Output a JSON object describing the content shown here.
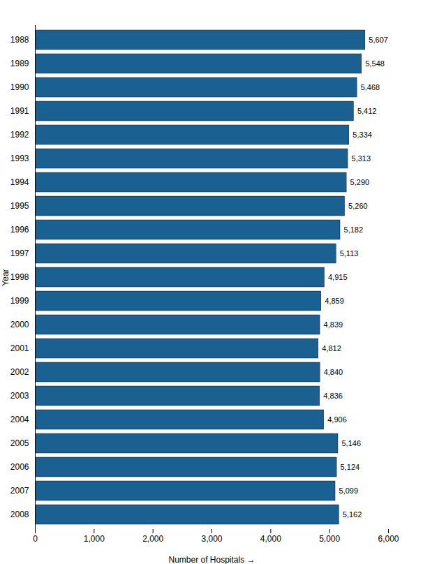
{
  "chart_data": {
    "type": "bar",
    "orientation": "horizontal",
    "categories": [
      "1988",
      "1989",
      "1990",
      "1991",
      "1992",
      "1993",
      "1994",
      "1995",
      "1996",
      "1997",
      "1998",
      "1999",
      "2000",
      "2001",
      "2002",
      "2003",
      "2004",
      "2005",
      "2006",
      "2007",
      "2008"
    ],
    "values": [
      5607,
      5548,
      5468,
      5412,
      5334,
      5313,
      5290,
      5260,
      5182,
      5113,
      4915,
      4859,
      4839,
      4812,
      4840,
      4836,
      4906,
      5146,
      5124,
      5099,
      5162
    ],
    "value_labels": [
      "5,607",
      "5,548",
      "5,468",
      "5,412",
      "5,334",
      "5,313",
      "5,290",
      "5,260",
      "5,182",
      "5,113",
      "4,915",
      "4,859",
      "4,839",
      "4,812",
      "4,840",
      "4,836",
      "4,906",
      "5,146",
      "5,124",
      "5,099",
      "5,162"
    ],
    "data_labels": true,
    "color": "#1a6090",
    "xlabel": "Number of Hospitals",
    "ylabel": "Year",
    "xlim": [
      0,
      6000
    ],
    "xticks": [
      0,
      {
        "value": 1000,
        "label": "1,000"
      },
      {
        "value": 2000,
        "label": "2,000"
      },
      {
        "value": 3000,
        "label": "3,000"
      },
      {
        "value": 4000,
        "label": "4,000"
      },
      {
        "value": 5000,
        "label": "5,000"
      },
      {
        "value": 6000,
        "label": "6,000"
      }
    ],
    "grid": false
  }
}
